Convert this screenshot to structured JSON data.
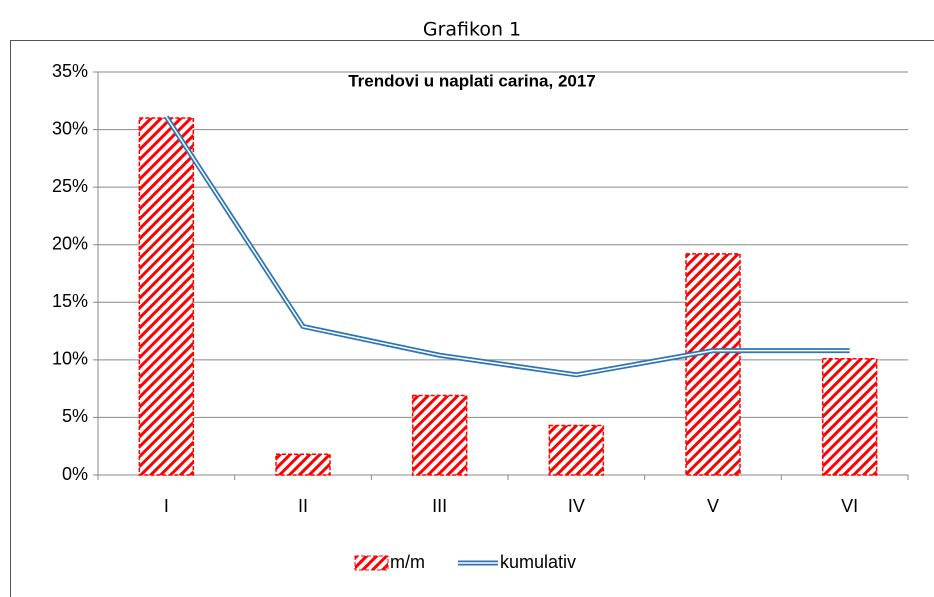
{
  "heading": "Grafikon 1",
  "chart_data": {
    "type": "bar",
    "title": "Trendovi u naplati carina, 2017",
    "categories": [
      "I",
      "II",
      "III",
      "IV",
      "V",
      "VI"
    ],
    "series": [
      {
        "name": "m/m",
        "type": "bar",
        "color": "#ff0000",
        "values": [
          31,
          1.8,
          6.9,
          4.3,
          19.2,
          10.1
        ]
      },
      {
        "name": "kumulativ",
        "type": "line",
        "color": "#2e75b6",
        "values": [
          31.1,
          12.9,
          10.4,
          8.7,
          10.8,
          10.8
        ]
      }
    ],
    "ylim": [
      0,
      35
    ],
    "yticks": [
      {
        "value": 0,
        "label": "0%"
      },
      {
        "value": 5,
        "label": "5%"
      },
      {
        "value": 10,
        "label": "10%"
      },
      {
        "value": 15,
        "label": "15%"
      },
      {
        "value": 20,
        "label": "20%"
      },
      {
        "value": 25,
        "label": "25%"
      },
      {
        "value": 30,
        "label": "30%"
      },
      {
        "value": 35,
        "label": "35%"
      }
    ],
    "grid": true,
    "legend": "bottom"
  }
}
